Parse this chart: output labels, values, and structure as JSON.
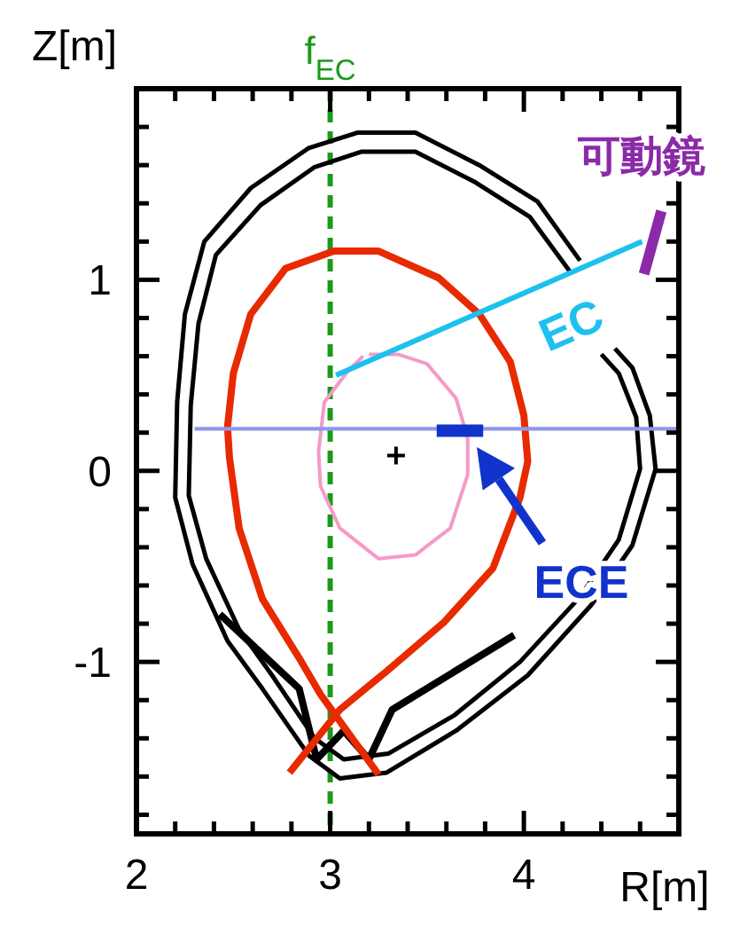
{
  "chart_data": {
    "type": "line",
    "xlabel": "R[m]",
    "ylabel": "Z[m]",
    "xlim": [
      2,
      4.8
    ],
    "ylim": [
      -1.9,
      2.0
    ],
    "xticks": [
      2,
      {
        "value": 2.2,
        "label": null
      },
      {
        "value": 2.4,
        "label": null
      },
      {
        "value": 2.6,
        "label": null
      },
      {
        "value": 2.8,
        "label": null
      },
      3,
      {
        "value": 3.2,
        "label": null
      },
      {
        "value": 3.4,
        "label": null
      },
      {
        "value": 3.6,
        "label": null
      },
      {
        "value": 3.8,
        "label": null
      },
      4,
      {
        "value": 4.2,
        "label": null
      },
      {
        "value": 4.4,
        "label": null
      },
      {
        "value": 4.6,
        "label": null
      }
    ],
    "yticks": [
      {
        "value": -1.8,
        "label": null
      },
      {
        "value": -1.6,
        "label": null
      },
      {
        "value": -1.4,
        "label": null
      },
      {
        "value": -1.2,
        "label": null
      },
      -1,
      {
        "value": -0.8,
        "label": null
      },
      {
        "value": -0.6,
        "label": null
      },
      {
        "value": -0.4,
        "label": null
      },
      {
        "value": -0.2,
        "label": null
      },
      0,
      {
        "value": 0.2,
        "label": null
      },
      {
        "value": 0.4,
        "label": null
      },
      {
        "value": 0.6,
        "label": null
      },
      {
        "value": 0.8,
        "label": null
      },
      1,
      {
        "value": 1.2,
        "label": null
      },
      {
        "value": 1.4,
        "label": null
      },
      {
        "value": 1.6,
        "label": null
      },
      {
        "value": 1.8,
        "label": null
      }
    ],
    "grid": false,
    "line_style": "solid",
    "ref_lines": [
      {
        "axis": "x",
        "value": 3,
        "label": "f$_{EC}$",
        "color": "#1a9a1a",
        "line_style": "dashed"
      }
    ],
    "series": [
      {
        "color": "#000000",
        "x": [
          4.29,
          4.07,
          3.77,
          3.44,
          3.14,
          2.89,
          2.59,
          2.35,
          2.25,
          2.21,
          2.2,
          2.29,
          2.47,
          2.65,
          2.89,
          3.05,
          3.29,
          3.65,
          4.02,
          4.35,
          4.56,
          4.68,
          4.65,
          4.56,
          4.47
        ],
        "values": [
          1.1,
          1.41,
          1.6,
          1.77,
          1.77,
          1.69,
          1.48,
          1.2,
          0.82,
          0.36,
          -0.14,
          -0.49,
          -0.89,
          -1.14,
          -1.49,
          -1.61,
          -1.58,
          -1.36,
          -1.07,
          -0.7,
          -0.39,
          0.01,
          0.29,
          0.54,
          0.64
        ]
      },
      {
        "color": "#000000",
        "x": [
          4.24,
          4.03,
          3.75,
          3.44,
          3.16,
          2.92,
          2.64,
          2.41,
          2.32,
          2.28,
          2.27,
          2.36,
          2.53,
          2.7,
          2.92,
          3.07,
          3.3,
          3.64,
          3.98,
          4.29,
          4.49,
          4.6,
          4.58,
          4.49,
          4.4
        ],
        "values": [
          1.04,
          1.33,
          1.51,
          1.67,
          1.67,
          1.59,
          1.39,
          1.13,
          0.77,
          0.34,
          -0.13,
          -0.46,
          -0.83,
          -1.07,
          -1.4,
          -1.51,
          -1.48,
          -1.28,
          -1.0,
          -0.66,
          -0.36,
          0.01,
          0.28,
          0.51,
          0.61
        ]
      },
      {
        "color": "#000000",
        "x": [
          2.43,
          2.84,
          2.93,
          3.07,
          3.2,
          3.32,
          3.95
        ],
        "values": [
          -0.75,
          -1.14,
          -1.51,
          -1.36,
          -1.51,
          -1.25,
          -0.86
        ]
      },
      {
        "color": "#e82a00",
        "x": [
          3.25,
          3.0,
          2.95,
          2.84,
          2.65,
          2.53,
          2.48,
          2.47,
          2.5,
          2.59,
          2.77,
          3.02,
          3.25,
          3.56,
          3.77,
          3.93,
          4.0,
          4.02,
          3.98,
          3.84,
          3.59,
          3.29,
          3.05,
          2.79
        ],
        "values": [
          -1.59,
          -1.24,
          -1.17,
          -0.98,
          -0.67,
          -0.3,
          0.07,
          0.23,
          0.51,
          0.82,
          1.06,
          1.15,
          1.15,
          1.01,
          0.82,
          0.57,
          0.29,
          0.05,
          -0.14,
          -0.51,
          -0.79,
          -1.05,
          -1.25,
          -1.58
        ]
      },
      {
        "color": "#f59ac8",
        "x": [
          3.2,
          3.35,
          3.5,
          3.65,
          3.71,
          3.71,
          3.62,
          3.44,
          3.25,
          3.05,
          2.95,
          2.94,
          2.97,
          3.09,
          3.17
        ],
        "values": [
          0.61,
          0.61,
          0.56,
          0.38,
          0.17,
          -0.02,
          -0.3,
          -0.44,
          -0.46,
          -0.3,
          -0.08,
          0.1,
          0.36,
          0.52,
          0.6
        ]
      },
      {
        "color": "#9098ea",
        "x": [
          2.3,
          4.8
        ],
        "values": [
          0.22,
          0.22
        ]
      },
      {
        "color": "#1ec0ef",
        "x": [
          3.03,
          4.61
        ],
        "values": [
          0.5,
          1.2
        ]
      },
      {
        "color": "#8b2aa8",
        "x": [
          4.71,
          4.62
        ],
        "values": [
          1.36,
          1.03
        ]
      },
      {
        "color": "#1133cc",
        "x": [
          3.55,
          3.79
        ],
        "values": [
          0.21,
          0.21
        ]
      },
      {
        "type": "scatter",
        "color": "#000000",
        "marker": "cross",
        "x": [
          3.34
        ],
        "values": [
          0.08
        ]
      }
    ],
    "annotations": [
      "可動鏡",
      "EC",
      "ECE"
    ]
  }
}
